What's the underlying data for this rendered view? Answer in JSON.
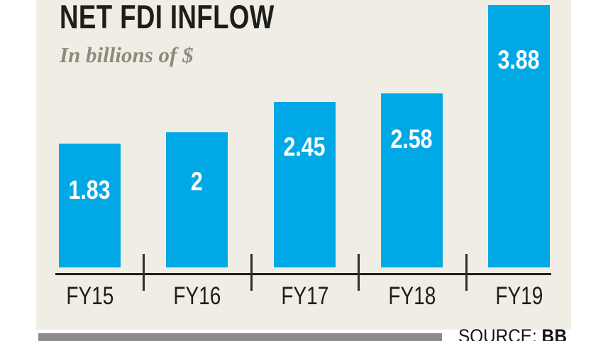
{
  "chart_data": {
    "type": "bar",
    "title": "NET FDI INFLOW",
    "subtitle": "In billions of $",
    "categories": [
      "FY15",
      "FY16",
      "FY17",
      "FY18",
      "FY19"
    ],
    "values": [
      1.83,
      2,
      2.45,
      2.58,
      3.88
    ],
    "value_labels": [
      "1.83",
      "2",
      "2.45",
      "2.58",
      "3.88"
    ],
    "xlabel": "",
    "ylabel": "",
    "ylim": [
      0,
      4
    ],
    "grid": false,
    "legend": false,
    "bar_color": "#00A9E6",
    "value_label_color": "#FFFFFF",
    "axis_color": "#1D1D1B"
  },
  "source": {
    "label": "SOURCE:",
    "value": "BB"
  },
  "colors": {
    "panel_background": "#F0EEE4",
    "page_background": "#FFFFFF",
    "title_text": "#1D1D1B",
    "subtitle_text": "#8D8A7E",
    "footer_bar": "#8C8C8C",
    "tick": "#2E2E2E"
  }
}
